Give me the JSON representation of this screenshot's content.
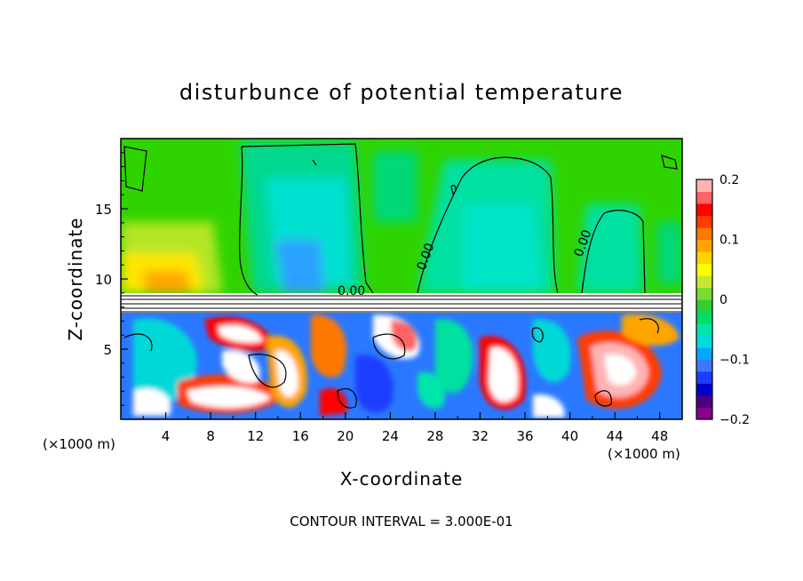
{
  "chart_data": {
    "type": "heatmap",
    "title": "disturbunce of potential temperature",
    "xlabel": "X-coordinate",
    "ylabel": "Z-coordinate",
    "x_unit_left": "(×1000 m)",
    "x_unit_right": "(×1000 m)",
    "xlim": [
      0,
      50
    ],
    "ylim": [
      0,
      20
    ],
    "x_ticks": [
      4,
      8,
      12,
      16,
      20,
      24,
      28,
      32,
      36,
      40,
      44,
      48
    ],
    "x_tick_labels": [
      "4",
      "8",
      "12",
      "16",
      "20",
      "24",
      "28",
      "32",
      "36",
      "40",
      "44",
      "48"
    ],
    "y_ticks": [
      5,
      10,
      15
    ],
    "y_tick_labels": [
      "5",
      "10",
      "15"
    ],
    "colorbar": {
      "range": [
        -0.2,
        0.2
      ],
      "ticks": [
        0.2,
        0.1,
        0,
        -0.1,
        -0.2
      ],
      "tick_labels": [
        "0.2",
        "0.1",
        "0",
        "−0.1",
        "−0.2"
      ],
      "colors": [
        "#8b008b",
        "#4b0082",
        "#0000cd",
        "#1e3cff",
        "#3c78ff",
        "#00aaff",
        "#00dcdc",
        "#00e6aa",
        "#00dc64",
        "#32cd32",
        "#78dc32",
        "#c8e632",
        "#ffff00",
        "#ffd200",
        "#ffa500",
        "#ff7800",
        "#ff3c00",
        "#ff0000",
        "#ff6464",
        "#ffb4b4"
      ]
    },
    "contour_labels": [
      "0.00",
      "0.00",
      "0.00"
    ],
    "footer": "CONTOUR INTERVAL = 3.000E-01",
    "grid": false
  }
}
